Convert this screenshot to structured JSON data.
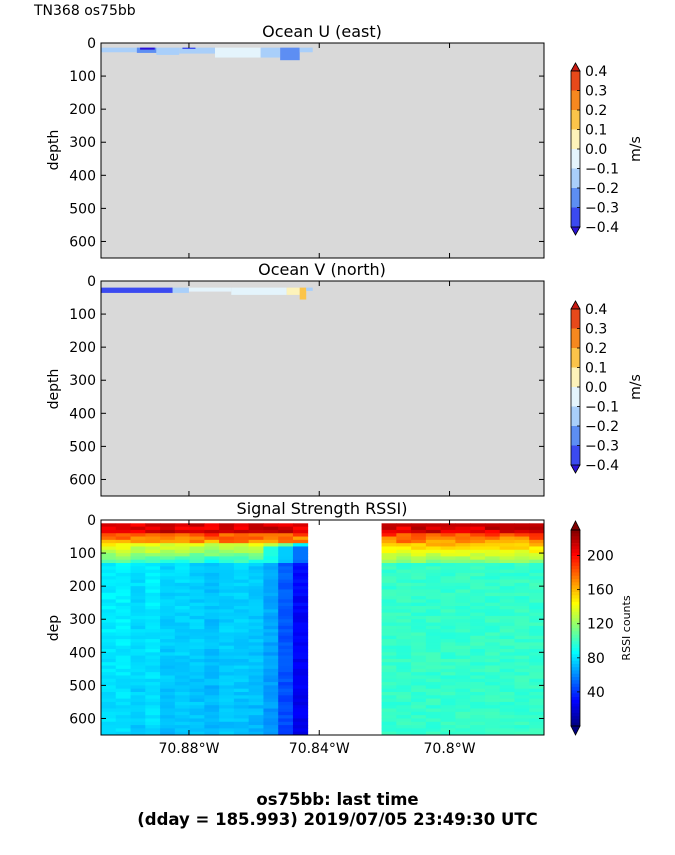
{
  "header": {
    "cruise_label": "TN368 os75bb"
  },
  "footer": {
    "line1": "os75bb: last time",
    "line2": "(dday = 185.993) 2019/07/05 23:49:30 UTC"
  },
  "colors": {
    "nodata_bg": "#d9d9d9",
    "frame": "#000000"
  },
  "chart_data": [
    {
      "id": "u",
      "type": "heatmap",
      "title": "Ocean U (east)",
      "ylabel": "depth",
      "yticks": [
        "0",
        "100",
        "200",
        "300",
        "400",
        "500",
        "600"
      ],
      "ylim": [
        650,
        0
      ],
      "xlim": [
        -70.907,
        -70.771
      ],
      "colorbar": {
        "label": "m/s",
        "ticks": [
          "0.4",
          "0.3",
          "0.2",
          "0.1",
          "0.0",
          "−0.1",
          "−0.2",
          "−0.3",
          "−0.4"
        ],
        "levels": [
          "#2b12d8",
          "#3b4af0",
          "#5d8ef3",
          "#a9cffa",
          "#e4f4fc",
          "#fdf3ba",
          "#fbc44a",
          "#f6881f",
          "#e8491a",
          "#c91a12"
        ],
        "extend": "both"
      },
      "data_patches": [
        {
          "x": [
            -70.907,
            -70.896
          ],
          "y": [
            14,
            28
          ],
          "value": -0.1
        },
        {
          "x": [
            -70.896,
            -70.89
          ],
          "y": [
            14,
            30
          ],
          "value": -0.2
        },
        {
          "x": [
            -70.89,
            -70.883
          ],
          "y": [
            14,
            36
          ],
          "value": -0.15
        },
        {
          "x": [
            -70.883,
            -70.872
          ],
          "y": [
            14,
            32
          ],
          "value": -0.1
        },
        {
          "x": [
            -70.872,
            -70.858
          ],
          "y": [
            14,
            44
          ],
          "value": -0.05
        },
        {
          "x": [
            -70.858,
            -70.852
          ],
          "y": [
            14,
            44
          ],
          "value": -0.15
        },
        {
          "x": [
            -70.852,
            -70.846
          ],
          "y": [
            14,
            52
          ],
          "value": -0.2
        },
        {
          "x": [
            -70.846,
            -70.842
          ],
          "y": [
            14,
            28
          ],
          "value": -0.1
        },
        {
          "x": [
            -70.882,
            -70.878
          ],
          "y": [
            14,
            18
          ],
          "value": -0.25
        },
        {
          "x": [
            -70.895,
            -70.8905
          ],
          "y": [
            14,
            20
          ],
          "value": -0.35
        }
      ]
    },
    {
      "id": "v",
      "type": "heatmap",
      "title": "Ocean V (north)",
      "ylabel": "depth",
      "yticks": [
        "0",
        "100",
        "200",
        "300",
        "400",
        "500",
        "600"
      ],
      "ylim": [
        650,
        0
      ],
      "xlim": [
        -70.907,
        -70.771
      ],
      "colorbar": {
        "label": "m/s",
        "ticks": [
          "0.4",
          "0.3",
          "0.2",
          "0.1",
          "0.0",
          "−0.1",
          "−0.2",
          "−0.3",
          "−0.4"
        ],
        "levels": [
          "#2b12d8",
          "#3b4af0",
          "#5d8ef3",
          "#a9cffa",
          "#e4f4fc",
          "#fdf3ba",
          "#fbc44a",
          "#f6881f",
          "#e8491a",
          "#c91a12"
        ],
        "extend": "both"
      },
      "data_patches": [
        {
          "x": [
            -70.907,
            -70.885
          ],
          "y": [
            20,
            36
          ],
          "value": -0.25
        },
        {
          "x": [
            -70.885,
            -70.88
          ],
          "y": [
            20,
            36
          ],
          "value": -0.15
        },
        {
          "x": [
            -70.88,
            -70.867
          ],
          "y": [
            20,
            32
          ],
          "value": -0.05
        },
        {
          "x": [
            -70.867,
            -70.85
          ],
          "y": [
            20,
            42
          ],
          "value": -0.05
        },
        {
          "x": [
            -70.85,
            -70.846
          ],
          "y": [
            20,
            42
          ],
          "value": 0.05
        },
        {
          "x": [
            -70.846,
            -70.844
          ],
          "y": [
            20,
            56
          ],
          "value": 0.12
        },
        {
          "x": [
            -70.844,
            -70.842
          ],
          "y": [
            20,
            30
          ],
          "value": -0.1
        }
      ]
    },
    {
      "id": "rssi",
      "type": "heatmap",
      "title": "Signal Strength RSSI)",
      "ylabel": "dep",
      "yticks": [
        "0",
        "100",
        "200",
        "300",
        "400",
        "500",
        "600"
      ],
      "ylim": [
        650,
        0
      ],
      "xlim": [
        -70.907,
        -70.771
      ],
      "xticks": [
        {
          "value": -70.88,
          "label": "70.88°W"
        },
        {
          "value": -70.84,
          "label": "70.84°W"
        },
        {
          "value": -70.8,
          "label": "70.8°W"
        }
      ],
      "colorbar": {
        "label": "RSSI counts",
        "range": [
          0,
          230
        ],
        "ticks": [
          {
            "value": 200,
            "label": "200"
          },
          {
            "value": 160,
            "label": "160"
          },
          {
            "value": 120,
            "label": "120"
          },
          {
            "value": 80,
            "label": "80"
          },
          {
            "value": 40,
            "label": "40"
          }
        ],
        "extend": "both"
      },
      "gap": [
        -70.843,
        -70.823
      ]
    }
  ]
}
